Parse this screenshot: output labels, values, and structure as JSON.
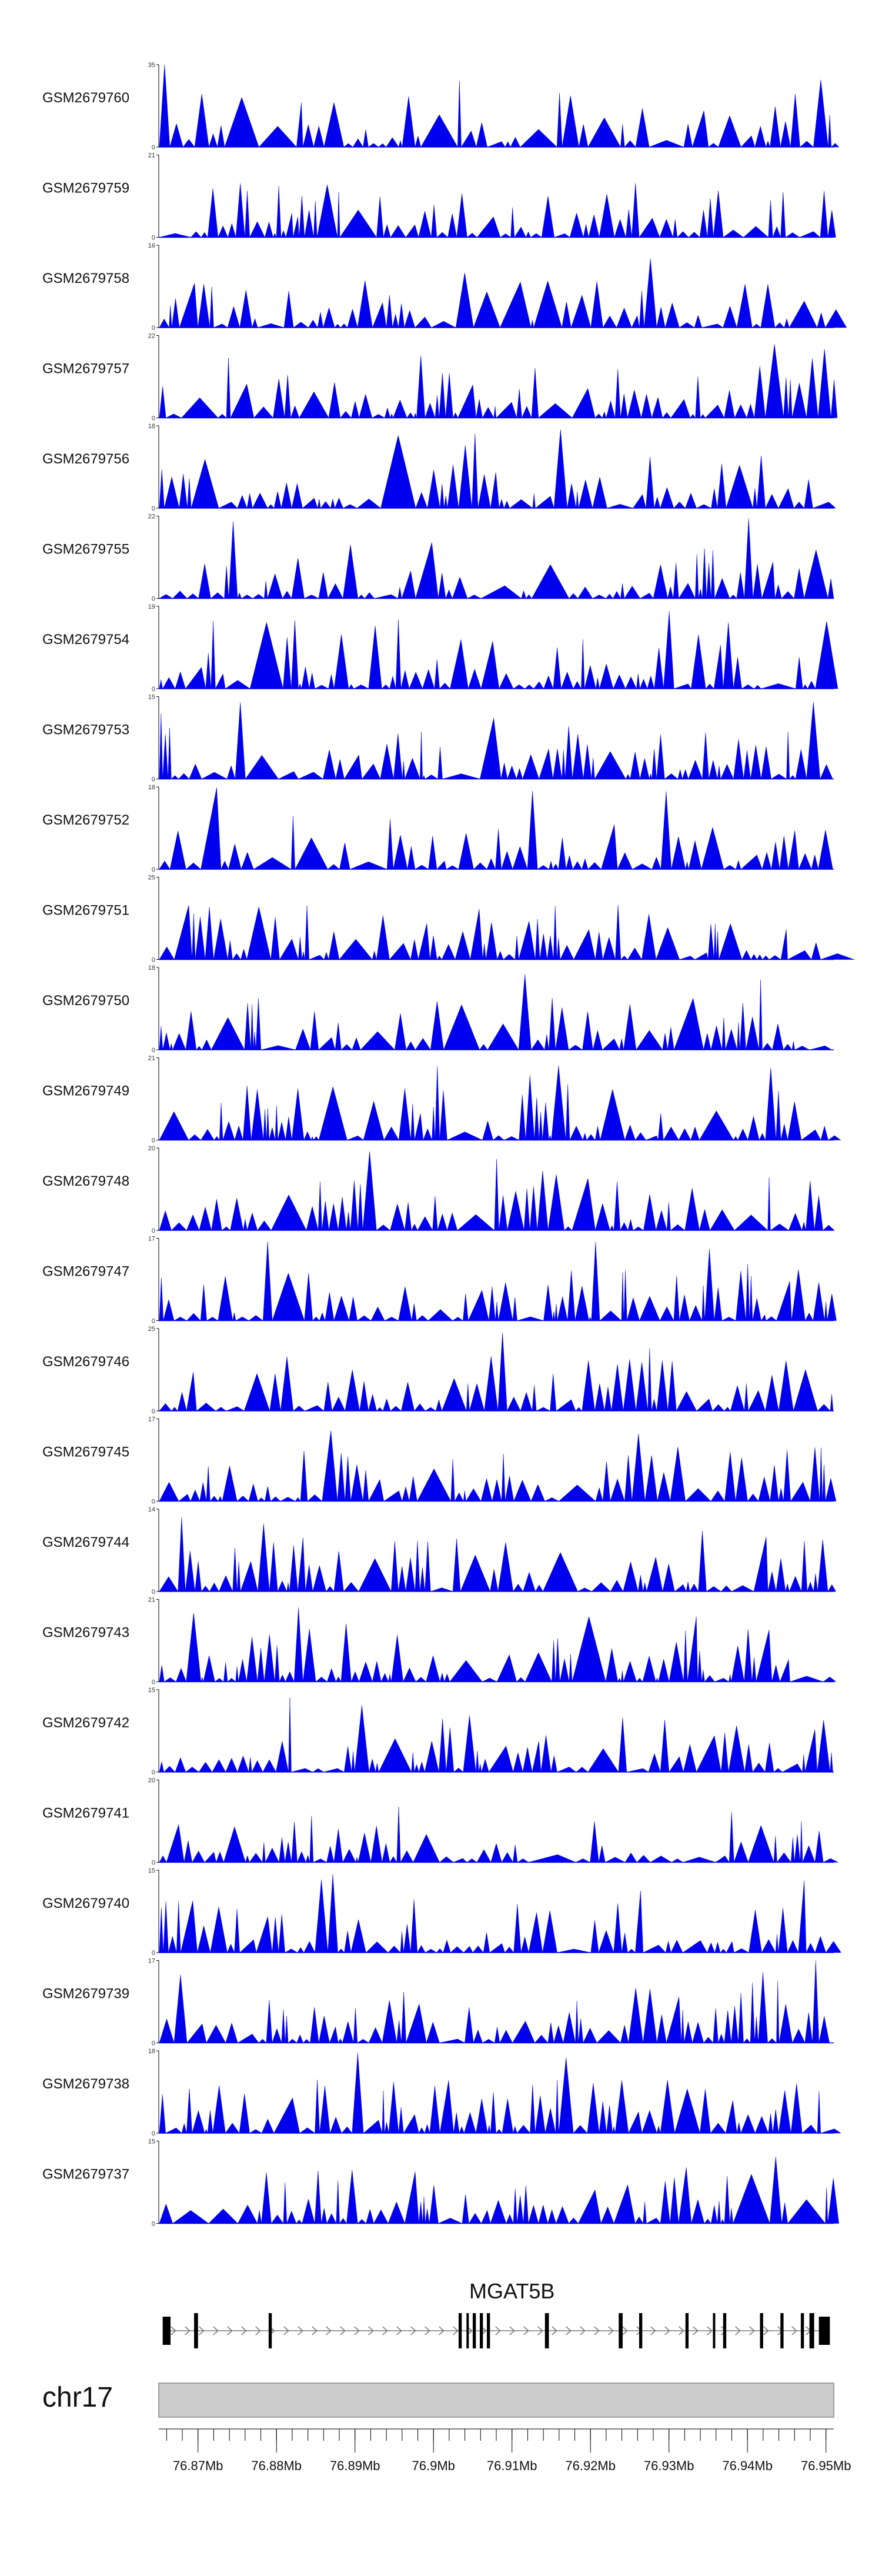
{
  "colors": {
    "signal": "#0000ee",
    "axis": "#000000",
    "ideogram_fill": "#cccccc",
    "ideogram_stroke": "#888888",
    "gene": "#000000",
    "intron": "#7a7a7a"
  },
  "chart_data": {
    "type": "area",
    "title": "",
    "xlabel": "",
    "ylabel": "",
    "xlim": [
      76.865,
      76.951
    ],
    "tracks": [
      {
        "name": "GSM2679760",
        "ymax": 35,
        "ymin": 0,
        "seed": 760
      },
      {
        "name": "GSM2679759",
        "ymax": 21,
        "ymin": 0,
        "seed": 759
      },
      {
        "name": "GSM2679758",
        "ymax": 16,
        "ymin": 0,
        "seed": 758
      },
      {
        "name": "GSM2679757",
        "ymax": 22,
        "ymin": 0,
        "seed": 757
      },
      {
        "name": "GSM2679756",
        "ymax": 18,
        "ymin": 0,
        "seed": 756
      },
      {
        "name": "GSM2679755",
        "ymax": 22,
        "ymin": 0,
        "seed": 755
      },
      {
        "name": "GSM2679754",
        "ymax": 19,
        "ymin": 0,
        "seed": 754
      },
      {
        "name": "GSM2679753",
        "ymax": 15,
        "ymin": 0,
        "seed": 753
      },
      {
        "name": "GSM2679752",
        "ymax": 18,
        "ymin": 0,
        "seed": 752
      },
      {
        "name": "GSM2679751",
        "ymax": 25,
        "ymin": 0,
        "seed": 751
      },
      {
        "name": "GSM2679750",
        "ymax": 18,
        "ymin": 0,
        "seed": 750
      },
      {
        "name": "GSM2679749",
        "ymax": 21,
        "ymin": 0,
        "seed": 749
      },
      {
        "name": "GSM2679748",
        "ymax": 20,
        "ymin": 0,
        "seed": 748
      },
      {
        "name": "GSM2679747",
        "ymax": 17,
        "ymin": 0,
        "seed": 747
      },
      {
        "name": "GSM2679746",
        "ymax": 25,
        "ymin": 0,
        "seed": 746
      },
      {
        "name": "GSM2679745",
        "ymax": 17,
        "ymin": 0,
        "seed": 745
      },
      {
        "name": "GSM2679744",
        "ymax": 14,
        "ymin": 0,
        "seed": 744
      },
      {
        "name": "GSM2679743",
        "ymax": 21,
        "ymin": 0,
        "seed": 743
      },
      {
        "name": "GSM2679742",
        "ymax": 15,
        "ymin": 0,
        "seed": 742
      },
      {
        "name": "GSM2679741",
        "ymax": 20,
        "ymin": 0,
        "seed": 741
      },
      {
        "name": "GSM2679740",
        "ymax": 15,
        "ymin": 0,
        "seed": 740
      },
      {
        "name": "GSM2679739",
        "ymax": 17,
        "ymin": 0,
        "seed": 739
      },
      {
        "name": "GSM2679738",
        "ymax": 18,
        "ymin": 0,
        "seed": 738
      },
      {
        "name": "GSM2679737",
        "ymax": 15,
        "ymin": 0,
        "seed": 737
      }
    ],
    "gene": {
      "name": "MGAT5B",
      "start": 76.8655,
      "end": 76.9505,
      "strand": "+",
      "exons": [
        [
          76.8655,
          76.8665
        ],
        [
          76.8695,
          76.87
        ],
        [
          76.879,
          76.8794
        ],
        [
          76.9032,
          76.9036
        ],
        [
          76.9042,
          76.9045
        ],
        [
          76.905,
          76.9054
        ],
        [
          76.9059,
          76.9063
        ],
        [
          76.9068,
          76.9072
        ],
        [
          76.9142,
          76.9147
        ],
        [
          76.9236,
          76.9241
        ],
        [
          76.9262,
          76.9266
        ],
        [
          76.9321,
          76.9325
        ],
        [
          76.9356,
          76.9359
        ],
        [
          76.9369,
          76.9373
        ],
        [
          76.9416,
          76.942
        ],
        [
          76.9442,
          76.9446
        ],
        [
          76.9468,
          76.9472
        ],
        [
          76.9479,
          76.9485
        ],
        [
          76.9491,
          76.9505
        ]
      ]
    },
    "chromosome": {
      "name": "chr17",
      "ticks": [
        "76.87Mb",
        "76.88Mb",
        "76.89Mb",
        "76.9Mb",
        "76.91Mb",
        "76.92Mb",
        "76.93Mb",
        "76.94Mb",
        "76.95Mb"
      ],
      "tick_values": [
        76.87,
        76.88,
        76.89,
        76.9,
        76.91,
        76.92,
        76.93,
        76.94,
        76.95
      ],
      "minor_step": 0.002
    }
  }
}
